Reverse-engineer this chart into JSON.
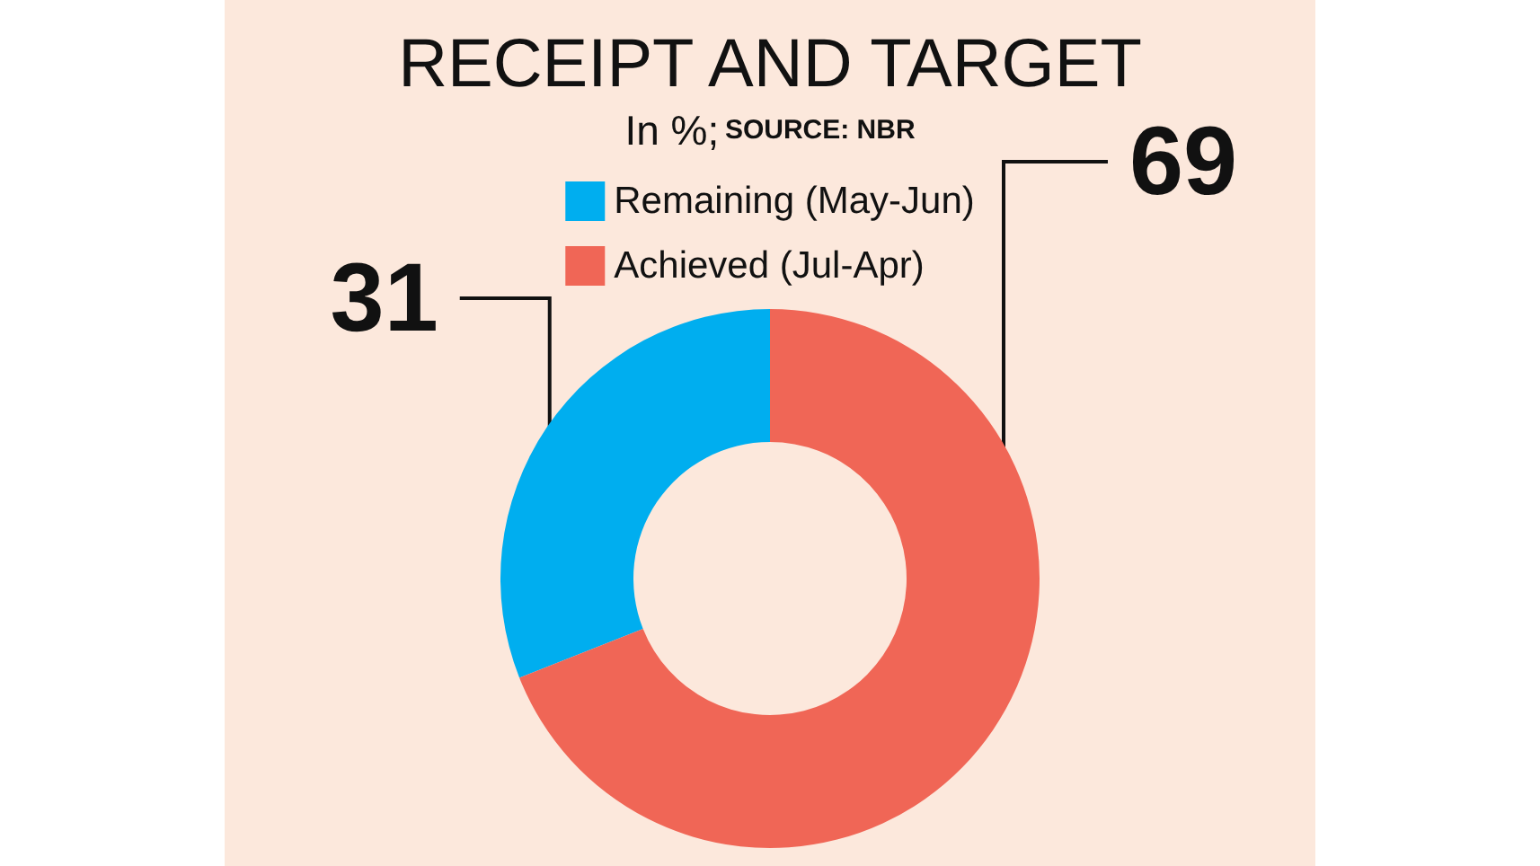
{
  "chart_data": {
    "type": "donut",
    "title": "RECEIPT AND TARGET",
    "subtitle": "In %;",
    "annotations": [
      "SOURCE: NBR"
    ],
    "categories": [
      "Remaining (May-Jun)",
      "Achieved (Jul-Apr)"
    ],
    "values": [
      31,
      69
    ],
    "colors": [
      "#00aeef",
      "#f06656"
    ],
    "data_labels": true,
    "legend": "top"
  }
}
